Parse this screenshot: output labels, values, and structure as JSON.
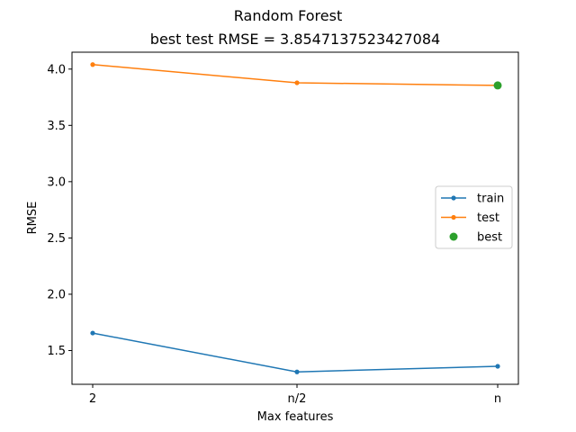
{
  "chart_data": {
    "type": "line",
    "suptitle": "Random Forest",
    "title": "best test RMSE = 3.8547137523427084",
    "xlabel": "Max features",
    "ylabel": "RMSE",
    "categories": [
      "2",
      "n/2",
      "n"
    ],
    "ylim": [
      1.2,
      4.15
    ],
    "yticks": [
      1.5,
      2.0,
      2.5,
      3.0,
      3.5,
      4.0
    ],
    "ytick_labels": [
      "1.5",
      "2.0",
      "2.5",
      "3.0",
      "3.5",
      "4.0"
    ],
    "series": [
      {
        "name": "train",
        "values": [
          1.655,
          1.31,
          1.36
        ],
        "color": "#1f77b4",
        "marker": "dot"
      },
      {
        "name": "test",
        "values": [
          4.04,
          3.878,
          3.855
        ],
        "color": "#ff7f0e",
        "marker": "dot"
      }
    ],
    "best": {
      "name": "best",
      "category_index": 2,
      "value": 3.8547137523427084,
      "color": "#2ca02c"
    },
    "legend_position": "center-right",
    "grid": false
  }
}
